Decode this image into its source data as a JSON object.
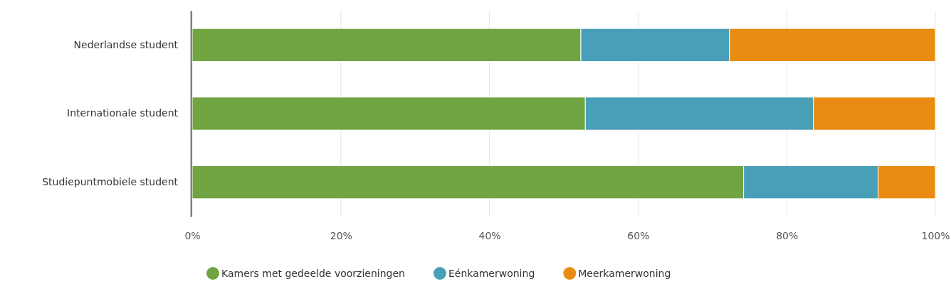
{
  "chart_data": {
    "type": "bar",
    "orientation": "horizontal",
    "stacked": true,
    "categories": [
      "Nederlandse student",
      "Internationale student",
      "Studiepuntmobiele student"
    ],
    "series": [
      {
        "name": "Kamers met gedeelde voorzieningen",
        "color": "#70a442",
        "values": [
          52.3,
          52.9,
          74.2
        ]
      },
      {
        "name": "Eénkamerwoning",
        "color": "#489fb8",
        "values": [
          20.0,
          30.7,
          18.1
        ]
      },
      {
        "name": "Meerkamerwoning",
        "color": "#e88b10",
        "values": [
          27.7,
          16.4,
          7.7
        ]
      }
    ],
    "xlim": [
      0,
      100
    ],
    "xticks": [
      {
        "value": 0,
        "label": "0%"
      },
      {
        "value": 20,
        "label": "20%"
      },
      {
        "value": 40,
        "label": "40%"
      },
      {
        "value": 60,
        "label": "60%"
      },
      {
        "value": 80,
        "label": "80%"
      },
      {
        "value": 100,
        "label": "100%"
      }
    ],
    "grid": "x",
    "legend": "bottom"
  }
}
